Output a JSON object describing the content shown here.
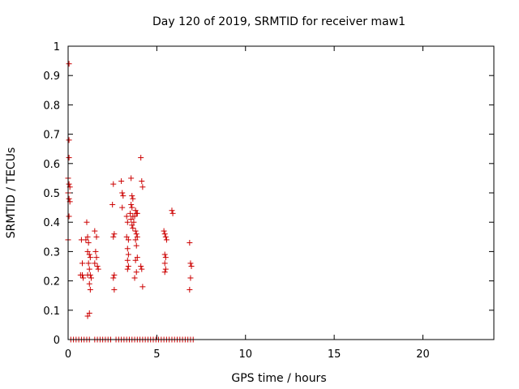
{
  "chart_data": {
    "type": "scatter",
    "title": "Day 120 of 2019, SRMTID for receiver maw1",
    "xlabel": "GPS time / hours",
    "ylabel": "SRMTID / TECUs",
    "xlim": [
      0,
      24
    ],
    "ylim": [
      0,
      1
    ],
    "xticks": [
      0,
      5,
      10,
      15,
      20
    ],
    "yticks": [
      0,
      0.1,
      0.2,
      0.3,
      0.4,
      0.5,
      0.6,
      0.7,
      0.8,
      0.9,
      1
    ],
    "xtick_labels": [
      "0",
      "5",
      "10",
      "15",
      "20"
    ],
    "ytick_labels": [
      "0",
      "0.1",
      "0.2",
      "0.3",
      "0.4",
      "0.5",
      "0.6",
      "0.7",
      "0.8",
      "0.9",
      "1"
    ],
    "grid": false,
    "marker": "plus",
    "color": "#cc0000",
    "series": [
      {
        "points": [
          [
            0.05,
            0.94
          ],
          [
            0.05,
            0.68
          ],
          [
            0.05,
            0.62
          ],
          [
            0.0,
            0.55
          ],
          [
            0.05,
            0.53
          ],
          [
            0.1,
            0.52
          ],
          [
            0.0,
            0.5
          ],
          [
            0.05,
            0.48
          ],
          [
            0.1,
            0.47
          ],
          [
            0.05,
            0.42
          ],
          [
            0.0,
            0.34
          ],
          [
            0.75,
            0.34
          ],
          [
            0.8,
            0.26
          ],
          [
            0.7,
            0.22
          ],
          [
            0.8,
            0.22
          ],
          [
            0.85,
            0.21
          ],
          [
            1.05,
            0.4
          ],
          [
            1.1,
            0.35
          ],
          [
            1.0,
            0.34
          ],
          [
            1.15,
            0.33
          ],
          [
            1.1,
            0.3
          ],
          [
            1.2,
            0.29
          ],
          [
            1.25,
            0.28
          ],
          [
            1.15,
            0.26
          ],
          [
            1.2,
            0.24
          ],
          [
            1.1,
            0.22
          ],
          [
            1.25,
            0.22
          ],
          [
            1.3,
            0.21
          ],
          [
            1.2,
            0.19
          ],
          [
            1.25,
            0.17
          ],
          [
            1.1,
            0.08
          ],
          [
            1.2,
            0.09
          ],
          [
            1.5,
            0.37
          ],
          [
            1.6,
            0.35
          ],
          [
            1.55,
            0.3
          ],
          [
            1.6,
            0.28
          ],
          [
            1.5,
            0.26
          ],
          [
            1.65,
            0.25
          ],
          [
            1.7,
            0.24
          ],
          [
            2.55,
            0.53
          ],
          [
            2.5,
            0.46
          ],
          [
            2.6,
            0.36
          ],
          [
            2.55,
            0.35
          ],
          [
            2.6,
            0.22
          ],
          [
            2.55,
            0.21
          ],
          [
            2.6,
            0.17
          ],
          [
            3.0,
            0.54
          ],
          [
            3.05,
            0.5
          ],
          [
            3.1,
            0.49
          ],
          [
            3.05,
            0.45
          ],
          [
            3.3,
            0.42
          ],
          [
            3.35,
            0.4
          ],
          [
            3.3,
            0.35
          ],
          [
            3.4,
            0.34
          ],
          [
            3.35,
            0.31
          ],
          [
            3.4,
            0.29
          ],
          [
            3.35,
            0.27
          ],
          [
            3.4,
            0.25
          ],
          [
            3.35,
            0.24
          ],
          [
            3.55,
            0.55
          ],
          [
            3.6,
            0.49
          ],
          [
            3.65,
            0.48
          ],
          [
            3.55,
            0.46
          ],
          [
            3.6,
            0.45
          ],
          [
            3.5,
            0.43
          ],
          [
            3.65,
            0.42
          ],
          [
            3.55,
            0.41
          ],
          [
            3.7,
            0.4
          ],
          [
            3.6,
            0.39
          ],
          [
            3.65,
            0.38
          ],
          [
            3.8,
            0.44
          ],
          [
            3.85,
            0.43
          ],
          [
            3.9,
            0.43
          ],
          [
            3.75,
            0.42
          ],
          [
            3.8,
            0.37
          ],
          [
            3.85,
            0.36
          ],
          [
            3.9,
            0.35
          ],
          [
            3.8,
            0.34
          ],
          [
            3.85,
            0.32
          ],
          [
            3.9,
            0.28
          ],
          [
            3.8,
            0.27
          ],
          [
            3.85,
            0.23
          ],
          [
            3.75,
            0.21
          ],
          [
            4.1,
            0.62
          ],
          [
            4.15,
            0.54
          ],
          [
            4.2,
            0.52
          ],
          [
            4.1,
            0.25
          ],
          [
            4.15,
            0.24
          ],
          [
            4.2,
            0.18
          ],
          [
            5.4,
            0.37
          ],
          [
            5.45,
            0.36
          ],
          [
            5.5,
            0.35
          ],
          [
            5.55,
            0.34
          ],
          [
            5.45,
            0.29
          ],
          [
            5.5,
            0.28
          ],
          [
            5.45,
            0.26
          ],
          [
            5.5,
            0.24
          ],
          [
            5.45,
            0.23
          ],
          [
            5.85,
            0.44
          ],
          [
            5.9,
            0.43
          ],
          [
            6.85,
            0.33
          ],
          [
            6.9,
            0.26
          ],
          [
            6.95,
            0.25
          ],
          [
            6.9,
            0.21
          ],
          [
            6.85,
            0.17
          ],
          [
            0.15,
            0
          ],
          [
            0.3,
            0
          ],
          [
            0.45,
            0
          ],
          [
            0.6,
            0
          ],
          [
            0.75,
            0
          ],
          [
            0.9,
            0
          ],
          [
            1.05,
            0
          ],
          [
            1.2,
            0
          ],
          [
            1.5,
            0
          ],
          [
            1.65,
            0
          ],
          [
            1.8,
            0
          ],
          [
            1.95,
            0
          ],
          [
            2.1,
            0
          ],
          [
            2.25,
            0
          ],
          [
            2.4,
            0
          ],
          [
            2.7,
            0
          ],
          [
            2.85,
            0
          ],
          [
            3.0,
            0
          ],
          [
            3.15,
            0
          ],
          [
            3.3,
            0
          ],
          [
            3.45,
            0
          ],
          [
            3.6,
            0
          ],
          [
            3.75,
            0
          ],
          [
            3.9,
            0
          ],
          [
            4.05,
            0
          ],
          [
            4.2,
            0
          ],
          [
            4.35,
            0
          ],
          [
            4.5,
            0
          ],
          [
            4.65,
            0
          ],
          [
            4.8,
            0
          ],
          [
            4.95,
            0
          ],
          [
            5.1,
            0
          ],
          [
            5.25,
            0
          ],
          [
            5.4,
            0
          ],
          [
            5.55,
            0
          ],
          [
            5.7,
            0
          ],
          [
            5.85,
            0
          ],
          [
            6.0,
            0
          ],
          [
            6.15,
            0
          ],
          [
            6.3,
            0
          ],
          [
            6.45,
            0
          ],
          [
            6.6,
            0
          ],
          [
            6.75,
            0
          ],
          [
            6.9,
            0
          ],
          [
            7.05,
            0
          ]
        ]
      }
    ]
  }
}
